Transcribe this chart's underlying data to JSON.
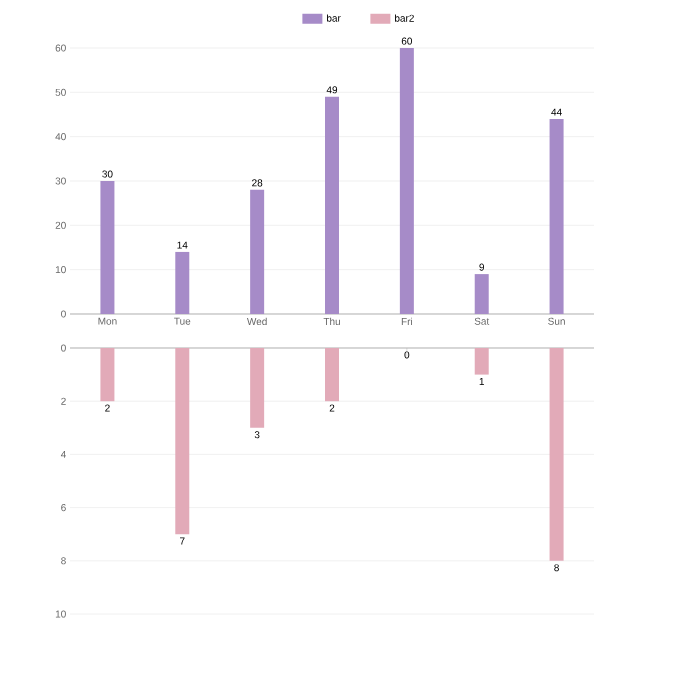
{
  "chart_data": [
    {
      "type": "bar",
      "categories": [
        "Mon",
        "Tue",
        "Wed",
        "Thu",
        "Fri",
        "Sat",
        "Sun"
      ],
      "series": [
        {
          "name": "bar",
          "color": "#a68bc8",
          "values": [
            30,
            14,
            28,
            49,
            60,
            9,
            44
          ]
        }
      ],
      "ylim": [
        0,
        60
      ],
      "yticks": [
        0,
        10,
        20,
        30,
        40,
        50,
        60
      ],
      "grid": "y",
      "data_labels": true,
      "legend": "top"
    },
    {
      "type": "bar",
      "categories": [
        null,
        null,
        null,
        null,
        null,
        null,
        null
      ],
      "series": [
        {
          "name": "bar2",
          "color": "#e2aab8",
          "values": [
            2,
            7,
            3,
            2,
            0,
            1,
            8
          ]
        }
      ],
      "ylim": [
        10,
        0
      ],
      "yticks": [
        0,
        2,
        4,
        6,
        8,
        10
      ],
      "grid": "y",
      "data_labels": true,
      "legend": "top",
      "tick_labels": "y"
    }
  ]
}
